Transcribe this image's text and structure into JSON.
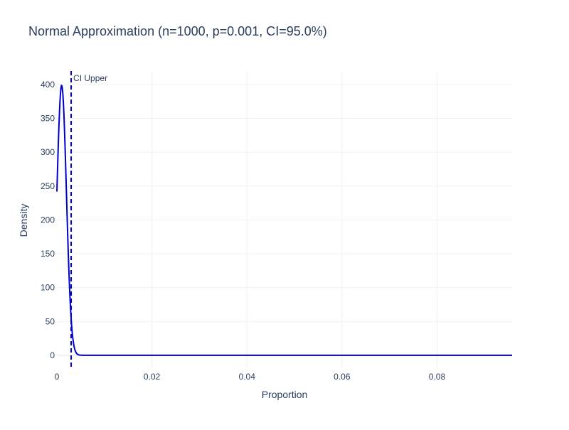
{
  "chart_data": {
    "type": "line",
    "title": "Normal Approximation (n=1000, p=0.001, CI=95.0%)",
    "xlabel": "Proportion",
    "ylabel": "Density",
    "xlim": [
      0,
      0.0958
    ],
    "ylim": [
      -18,
      420
    ],
    "x_ticks": [
      0,
      0.02,
      0.04,
      0.06,
      0.08
    ],
    "x_tick_labels": [
      "0",
      "0.02",
      "0.04",
      "0.06",
      "0.08"
    ],
    "y_ticks": [
      0,
      50,
      100,
      150,
      200,
      250,
      300,
      350,
      400
    ],
    "y_tick_labels": [
      "0",
      "50",
      "100",
      "150",
      "200",
      "250",
      "300",
      "350",
      "400"
    ],
    "grid": true,
    "series": [
      {
        "color": "#0000cc",
        "distribution": {
          "mean": 0.001,
          "sd": 0.001
        },
        "x_range": [
          0,
          0.0958
        ]
      }
    ],
    "vlines": [
      {
        "x": 0.003,
        "label": "CI Upper",
        "color": "#0000cc",
        "style": "dashed"
      }
    ]
  },
  "colors": {
    "line": "#0000cc",
    "grid": "#eef1f5",
    "text": "#2a3f5f",
    "title": "#2a3f5f"
  }
}
